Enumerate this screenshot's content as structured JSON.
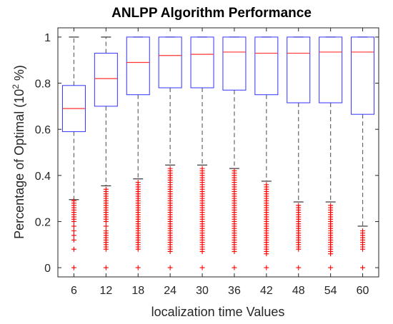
{
  "chart_data": {
    "type": "box",
    "title": "ANLPP Algorithm Performance",
    "xlabel": "localization time Values",
    "ylabel": "Percentage of Optimal (10",
    "ylabel_sup": "2",
    "ylabel_tail": " %)",
    "ylim": [
      -0.04,
      1.04
    ],
    "yticks": [
      "0",
      "0.2",
      "0.4",
      "0.6",
      "0.8",
      "1"
    ],
    "grid": false,
    "colors": {
      "box": "#3333ff",
      "median": "#ff3333",
      "whisker": "#666666",
      "outlier": "#ff0000"
    },
    "categories": [
      "6",
      "12",
      "18",
      "24",
      "30",
      "36",
      "42",
      "48",
      "54",
      "60"
    ],
    "boxes": [
      {
        "q1": 0.59,
        "median": 0.69,
        "q3": 0.79,
        "whisker_low": 0.295,
        "whisker_high": 1.0,
        "outliers": [
          0.0,
          0.08,
          0.12,
          0.14,
          0.16,
          0.18,
          0.2,
          0.21,
          0.22,
          0.23,
          0.24,
          0.25,
          0.26,
          0.27,
          0.28,
          0.29
        ]
      },
      {
        "q1": 0.7,
        "median": 0.82,
        "q3": 0.93,
        "whisker_low": 0.355,
        "whisker_high": 1.0,
        "outliers": [
          0.0,
          0.08,
          0.09,
          0.1,
          0.11,
          0.12,
          0.13,
          0.14,
          0.15,
          0.16,
          0.18,
          0.2,
          0.21,
          0.22,
          0.23,
          0.24,
          0.25,
          0.26,
          0.27,
          0.28,
          0.29,
          0.3,
          0.31,
          0.32,
          0.33,
          0.34
        ]
      },
      {
        "q1": 0.75,
        "median": 0.89,
        "q3": 1.0,
        "whisker_low": 0.385,
        "whisker_high": 1.0,
        "outliers": [
          0.0,
          0.08,
          0.09,
          0.1,
          0.11,
          0.12,
          0.13,
          0.14,
          0.15,
          0.16,
          0.17,
          0.18,
          0.19,
          0.2,
          0.21,
          0.22,
          0.23,
          0.24,
          0.25,
          0.26,
          0.27,
          0.28,
          0.29,
          0.3,
          0.31,
          0.32,
          0.33,
          0.34,
          0.35,
          0.36,
          0.37
        ]
      },
      {
        "q1": 0.78,
        "median": 0.92,
        "q3": 1.0,
        "whisker_low": 0.445,
        "whisker_high": 1.0,
        "outliers": [
          0.0,
          0.07,
          0.08,
          0.09,
          0.1,
          0.11,
          0.12,
          0.13,
          0.14,
          0.15,
          0.16,
          0.17,
          0.18,
          0.19,
          0.2,
          0.21,
          0.22,
          0.23,
          0.24,
          0.25,
          0.26,
          0.27,
          0.28,
          0.29,
          0.3,
          0.31,
          0.32,
          0.33,
          0.34,
          0.35,
          0.36,
          0.37,
          0.38,
          0.39,
          0.4,
          0.41,
          0.42,
          0.43
        ]
      },
      {
        "q1": 0.78,
        "median": 0.925,
        "q3": 1.0,
        "whisker_low": 0.445,
        "whisker_high": 1.0,
        "outliers": [
          0.0,
          0.07,
          0.08,
          0.09,
          0.1,
          0.11,
          0.12,
          0.13,
          0.14,
          0.15,
          0.16,
          0.17,
          0.18,
          0.19,
          0.2,
          0.21,
          0.22,
          0.23,
          0.24,
          0.25,
          0.26,
          0.27,
          0.28,
          0.29,
          0.3,
          0.31,
          0.32,
          0.33,
          0.34,
          0.35,
          0.36,
          0.37,
          0.38,
          0.39,
          0.4,
          0.41,
          0.42,
          0.43
        ]
      },
      {
        "q1": 0.77,
        "median": 0.935,
        "q3": 1.0,
        "whisker_low": 0.43,
        "whisker_high": 1.0,
        "outliers": [
          0.0,
          0.07,
          0.08,
          0.09,
          0.1,
          0.11,
          0.12,
          0.13,
          0.14,
          0.15,
          0.16,
          0.17,
          0.18,
          0.19,
          0.2,
          0.21,
          0.22,
          0.23,
          0.24,
          0.25,
          0.26,
          0.27,
          0.28,
          0.29,
          0.3,
          0.31,
          0.32,
          0.33,
          0.34,
          0.35,
          0.36,
          0.37,
          0.38,
          0.39,
          0.4,
          0.41,
          0.42
        ]
      },
      {
        "q1": 0.75,
        "median": 0.93,
        "q3": 1.0,
        "whisker_low": 0.375,
        "whisker_high": 1.0,
        "outliers": [
          0.0,
          0.06,
          0.07,
          0.08,
          0.09,
          0.1,
          0.11,
          0.12,
          0.13,
          0.14,
          0.15,
          0.16,
          0.17,
          0.18,
          0.19,
          0.2,
          0.21,
          0.22,
          0.23,
          0.24,
          0.25,
          0.26,
          0.27,
          0.28,
          0.29,
          0.3,
          0.31,
          0.32,
          0.33,
          0.34,
          0.35,
          0.36
        ]
      },
      {
        "q1": 0.715,
        "median": 0.93,
        "q3": 1.0,
        "whisker_low": 0.285,
        "whisker_high": 1.0,
        "outliers": [
          0.0,
          0.08,
          0.09,
          0.1,
          0.11,
          0.12,
          0.13,
          0.14,
          0.15,
          0.16,
          0.17,
          0.18,
          0.19,
          0.2,
          0.21,
          0.22,
          0.23,
          0.24,
          0.25,
          0.26,
          0.27
        ]
      },
      {
        "q1": 0.715,
        "median": 0.935,
        "q3": 1.0,
        "whisker_low": 0.285,
        "whisker_high": 1.0,
        "outliers": [
          0.0,
          0.06,
          0.07,
          0.08,
          0.09,
          0.1,
          0.11,
          0.12,
          0.13,
          0.14,
          0.15,
          0.16,
          0.17,
          0.18,
          0.19,
          0.2,
          0.21,
          0.22,
          0.23,
          0.24,
          0.25,
          0.26,
          0.27
        ]
      },
      {
        "q1": 0.665,
        "median": 0.935,
        "q3": 1.0,
        "whisker_low": 0.18,
        "whisker_high": 1.0,
        "outliers": [
          0.0,
          0.08,
          0.09,
          0.1,
          0.11,
          0.12,
          0.13,
          0.14,
          0.15,
          0.16
        ]
      }
    ]
  }
}
